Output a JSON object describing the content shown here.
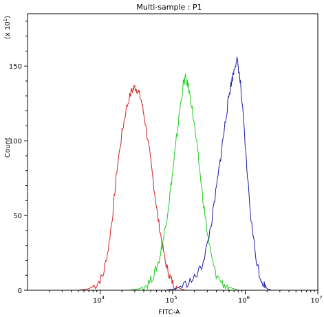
{
  "chart_data": {
    "type": "line",
    "title": "Multi-sample : P1",
    "xlabel": "FITC-A",
    "ylabel": "Count",
    "y_multiplier_label": "(x 10",
    "y_multiplier_exp": "1",
    "x_scale": "log",
    "xlim": [
      1000,
      10000000
    ],
    "ylim": [
      0,
      185
    ],
    "x_ticks": [
      {
        "value": 10000,
        "base": "10",
        "exp": "4"
      },
      {
        "value": 100000,
        "base": "10",
        "exp": "5"
      },
      {
        "value": 1000000,
        "base": "10",
        "exp": "6"
      },
      {
        "value": 10000000,
        "base": "10",
        "exp": "7"
      }
    ],
    "y_ticks": [
      {
        "value": 0,
        "label": "0"
      },
      {
        "value": 50,
        "label": "50"
      },
      {
        "value": 100,
        "label": "100"
      },
      {
        "value": 150,
        "label": "150"
      }
    ],
    "grid": false,
    "legend": "none",
    "series": [
      {
        "color": "#d42020",
        "x": [
          5000,
          7000,
          9000,
          11000,
          13000,
          15000,
          17000,
          20000,
          23000,
          27000,
          30000,
          33000,
          37000,
          42000,
          48000,
          55000,
          62000,
          70000,
          80000,
          90000,
          100000,
          115000,
          130000,
          150000
        ],
        "y": [
          0,
          1,
          4,
          10,
          28,
          52,
          80,
          105,
          122,
          133,
          136,
          134,
          127,
          112,
          92,
          70,
          50,
          34,
          18,
          10,
          5,
          2,
          1,
          0
        ]
      },
      {
        "color": "#20cc20",
        "x": [
          25000,
          35000,
          45000,
          55000,
          65000,
          75000,
          85000,
          95000,
          105000,
          115000,
          125000,
          140000,
          150000,
          165000,
          180000,
          200000,
          230000,
          260000,
          300000,
          350000,
          400000,
          500000,
          600000,
          700000,
          800000
        ],
        "y": [
          0,
          1,
          4,
          10,
          20,
          35,
          52,
          70,
          88,
          105,
          120,
          138,
          142,
          136,
          126,
          110,
          85,
          62,
          38,
          20,
          10,
          4,
          2,
          1,
          0
        ]
      },
      {
        "color": "#1a1aa8",
        "x": [
          80000,
          110000,
          150000,
          200000,
          250000,
          300000,
          350000,
          400000,
          450000,
          500000,
          550000,
          600000,
          650000,
          700000,
          760000,
          800000,
          860000,
          950000,
          1050000,
          1200000,
          1400000,
          1600000,
          1800000,
          2000000,
          2300000
        ],
        "y": [
          0,
          1,
          4,
          8,
          16,
          30,
          48,
          68,
          86,
          103,
          118,
          131,
          140,
          147,
          155,
          150,
          138,
          112,
          82,
          48,
          22,
          9,
          4,
          1,
          0
        ]
      }
    ]
  }
}
